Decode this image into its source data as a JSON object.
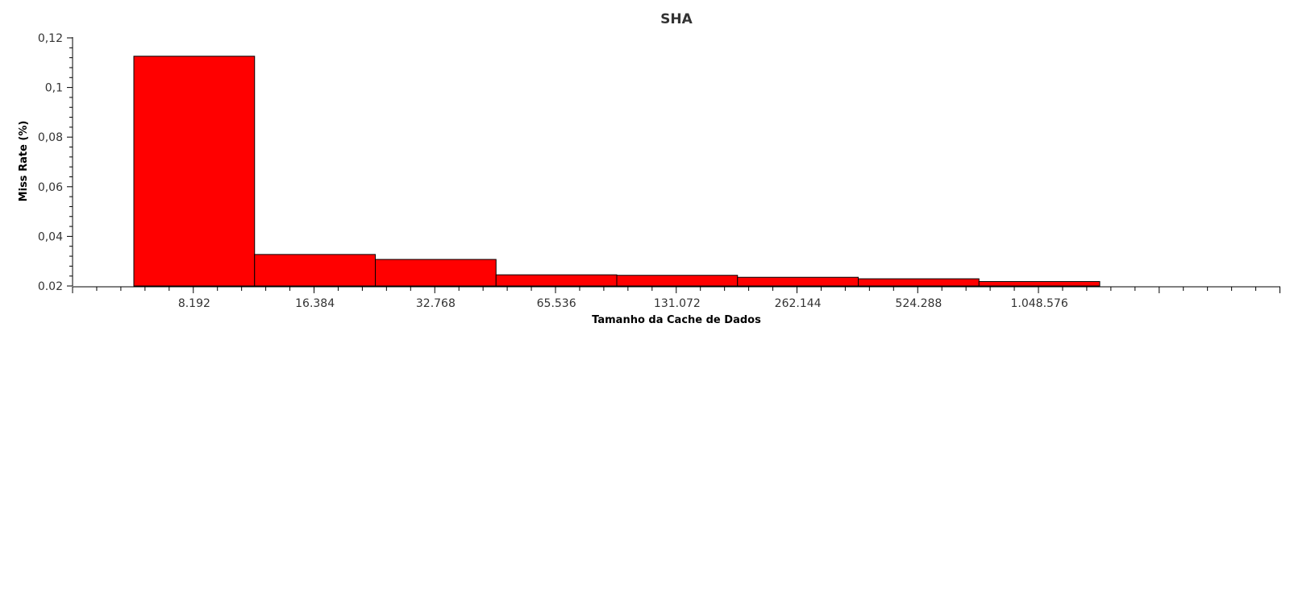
{
  "chart_data": {
    "type": "bar",
    "title": "SHA",
    "xlabel": "Tamanho da Cache de Dados",
    "ylabel": "Miss Rate (%)",
    "categories": [
      "8.192",
      "16.384",
      "32.768",
      "65.536",
      "131.072",
      "262.144",
      "524.288",
      "1.048.576"
    ],
    "values": [
      0.1126,
      0.0327,
      0.0307,
      0.0245,
      0.0243,
      0.0235,
      0.0229,
      0.0218
    ],
    "ylim": [
      0.02,
      0.12
    ],
    "yticks": [
      "0.02",
      "0,04",
      "0,06",
      "0,08",
      "0,1",
      "0,12"
    ],
    "bar_color": "#ff0000",
    "bar_edge_color": "#000000",
    "grid": false,
    "legend": "none"
  }
}
